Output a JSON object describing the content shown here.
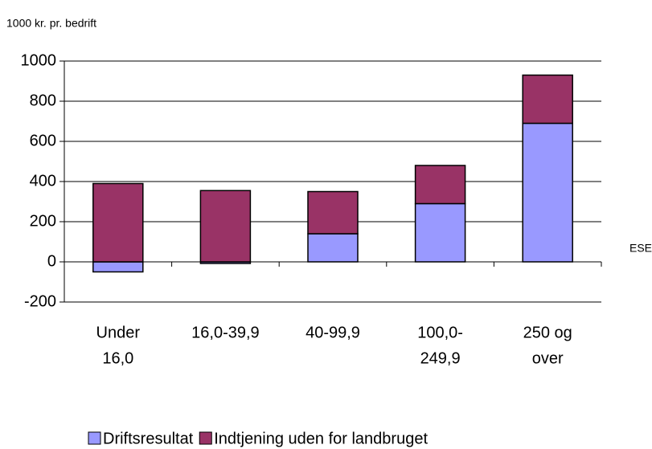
{
  "chart_data": {
    "type": "stacked_bar",
    "y_label": "1000 kr. pr. bedrift",
    "x_label": "ESE",
    "categories": [
      [
        "Under",
        "16,0"
      ],
      [
        "16,0-39,9"
      ],
      [
        "40-99,9"
      ],
      [
        "100,0-",
        "249,9"
      ],
      [
        "250 og",
        "over"
      ]
    ],
    "series": [
      {
        "name": "Driftsresultat",
        "color": "#9999ff",
        "values": [
          -50,
          -8,
          140,
          290,
          690
        ]
      },
      {
        "name": "Indtjening uden for landbruget",
        "color": "#993366",
        "values": [
          390,
          355,
          210,
          190,
          240
        ]
      }
    ],
    "ylim": [
      -200,
      1000
    ],
    "yticks": [
      -200,
      0,
      200,
      400,
      600,
      800,
      1000
    ],
    "grid": true
  }
}
